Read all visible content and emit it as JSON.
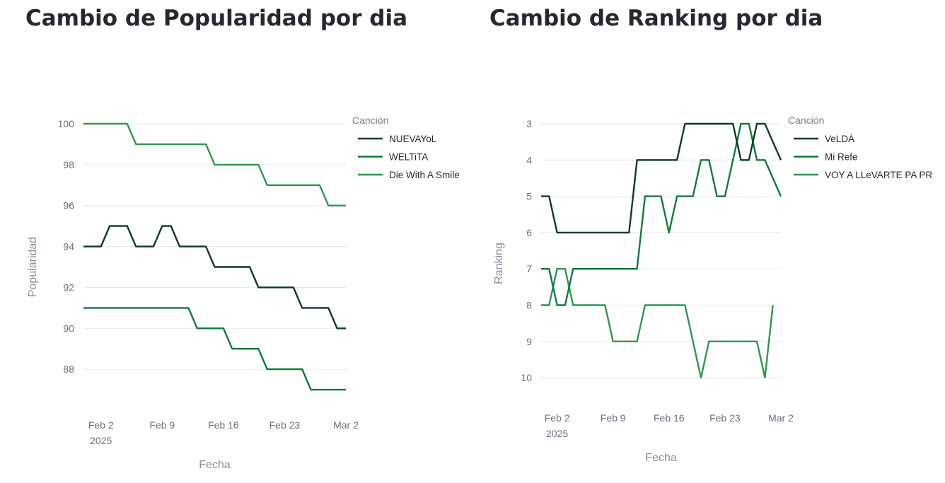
{
  "chart_data": [
    {
      "type": "line",
      "title": "Cambio de Popularidad por dia",
      "xlabel": "Fecha",
      "ylabel": "Popularidad",
      "x_ticks": [
        "Feb 2",
        "Feb 9",
        "Feb 16",
        "Feb 23",
        "Mar 2"
      ],
      "x_tick_year": "2025",
      "x_range": [
        "2025-01-31",
        "2025-03-02"
      ],
      "y_ticks": [
        88,
        90,
        92,
        94,
        96,
        98,
        100
      ],
      "ylim": [
        86,
        100
      ],
      "y_reversed": false,
      "grid": true,
      "legend": {
        "title": "Canción",
        "placement": "right"
      },
      "series": [
        {
          "name": "NUEVAYoL",
          "color": "#0b3d1e",
          "points": [
            [
              "2025-01-31",
              94
            ],
            [
              "2025-02-02",
              94
            ],
            [
              "2025-02-03",
              95
            ],
            [
              "2025-02-05",
              95
            ],
            [
              "2025-02-06",
              94
            ],
            [
              "2025-02-08",
              94
            ],
            [
              "2025-02-09",
              95
            ],
            [
              "2025-02-10",
              95
            ],
            [
              "2025-02-11",
              94
            ],
            [
              "2025-02-14",
              94
            ],
            [
              "2025-02-15",
              93
            ],
            [
              "2025-02-19",
              93
            ],
            [
              "2025-02-20",
              92
            ],
            [
              "2025-02-24",
              92
            ],
            [
              "2025-02-25",
              91
            ],
            [
              "2025-02-28",
              91
            ],
            [
              "2025-03-01",
              90
            ],
            [
              "2025-03-02",
              90
            ]
          ]
        },
        {
          "name": "WELTiTA",
          "color": "#0e7a3a",
          "points": [
            [
              "2025-01-31",
              91
            ],
            [
              "2025-02-12",
              91
            ],
            [
              "2025-02-13",
              90
            ],
            [
              "2025-02-16",
              90
            ],
            [
              "2025-02-17",
              89
            ],
            [
              "2025-02-20",
              89
            ],
            [
              "2025-02-21",
              88
            ],
            [
              "2025-02-25",
              88
            ],
            [
              "2025-02-26",
              87
            ],
            [
              "2025-03-02",
              87
            ]
          ]
        },
        {
          "name": "Die With A Smile",
          "color": "#2e9650",
          "points": [
            [
              "2025-01-31",
              100
            ],
            [
              "2025-02-05",
              100
            ],
            [
              "2025-02-06",
              99
            ],
            [
              "2025-02-14",
              99
            ],
            [
              "2025-02-15",
              98
            ],
            [
              "2025-02-20",
              98
            ],
            [
              "2025-02-21",
              97
            ],
            [
              "2025-02-27",
              97
            ],
            [
              "2025-02-28",
              96
            ],
            [
              "2025-03-02",
              96
            ]
          ]
        }
      ]
    },
    {
      "type": "line",
      "title": "Cambio de Ranking por dia",
      "xlabel": "Fecha",
      "ylabel": "Ranking",
      "x_ticks": [
        "Feb 2",
        "Feb 9",
        "Feb 16",
        "Feb 23",
        "Mar 2"
      ],
      "x_tick_year": "2025",
      "x_range": [
        "2025-01-31",
        "2025-03-02"
      ],
      "y_ticks": [
        3,
        4,
        5,
        6,
        7,
        8,
        9,
        10
      ],
      "ylim": [
        10.7,
        3
      ],
      "y_reversed": true,
      "grid": true,
      "legend": {
        "title": "Canción",
        "placement": "right"
      },
      "series": [
        {
          "name": "VeLDÁ",
          "color": "#0b3d1e",
          "points": [
            [
              "2025-01-31",
              5
            ],
            [
              "2025-02-01",
              5
            ],
            [
              "2025-02-02",
              6
            ],
            [
              "2025-02-11",
              6
            ],
            [
              "2025-02-12",
              4
            ],
            [
              "2025-02-17",
              4
            ],
            [
              "2025-02-18",
              3
            ],
            [
              "2025-02-24",
              3
            ],
            [
              "2025-02-25",
              4
            ],
            [
              "2025-02-26",
              4
            ],
            [
              "2025-02-27",
              3
            ],
            [
              "2025-02-28",
              3
            ],
            [
              "2025-03-02",
              4
            ]
          ]
        },
        {
          "name": "Mi Refe",
          "color": "#0e7a3a",
          "points": [
            [
              "2025-01-31",
              7
            ],
            [
              "2025-02-01",
              7
            ],
            [
              "2025-02-02",
              8
            ],
            [
              "2025-02-03",
              8
            ],
            [
              "2025-02-04",
              7
            ],
            [
              "2025-02-12",
              7
            ],
            [
              "2025-02-13",
              5
            ],
            [
              "2025-02-15",
              5
            ],
            [
              "2025-02-16",
              6
            ],
            [
              "2025-02-17",
              5
            ],
            [
              "2025-02-19",
              5
            ],
            [
              "2025-02-20",
              4
            ],
            [
              "2025-02-21",
              4
            ],
            [
              "2025-02-22",
              5
            ],
            [
              "2025-02-23",
              5
            ],
            [
              "2025-02-25",
              3
            ],
            [
              "2025-02-26",
              3
            ],
            [
              "2025-02-27",
              4
            ],
            [
              "2025-02-28",
              4
            ],
            [
              "2025-03-02",
              5
            ]
          ]
        },
        {
          "name": "VOY A LLeVARTE PA PR",
          "color": "#2e9650",
          "points": [
            [
              "2025-01-31",
              8
            ],
            [
              "2025-02-01",
              8
            ],
            [
              "2025-02-02",
              7
            ],
            [
              "2025-02-03",
              7
            ],
            [
              "2025-02-04",
              8
            ],
            [
              "2025-02-08",
              8
            ],
            [
              "2025-02-09",
              9
            ],
            [
              "2025-02-12",
              9
            ],
            [
              "2025-02-13",
              8
            ],
            [
              "2025-02-18",
              8
            ],
            [
              "2025-02-20",
              10
            ],
            [
              "2025-02-21",
              9
            ],
            [
              "2025-02-27",
              9
            ],
            [
              "2025-02-28",
              10
            ],
            [
              "2025-03-01",
              8
            ]
          ]
        }
      ]
    }
  ]
}
